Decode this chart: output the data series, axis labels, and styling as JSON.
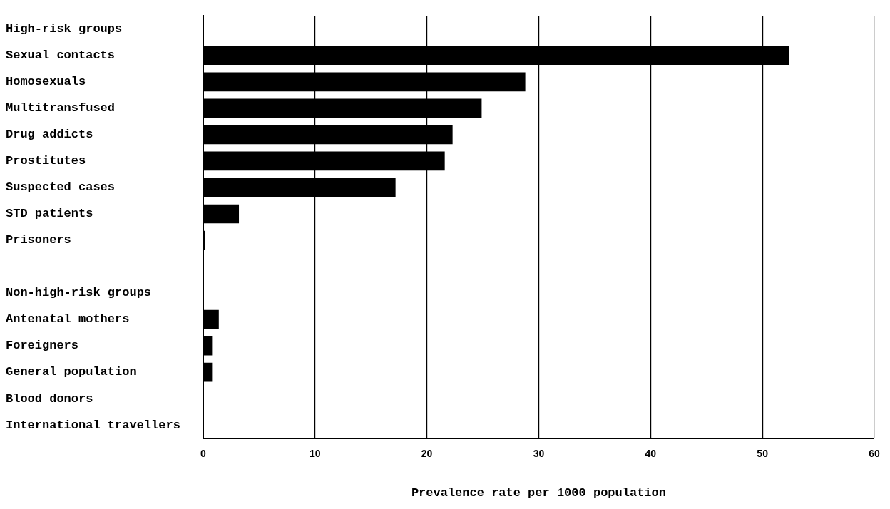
{
  "chart_data": {
    "type": "bar",
    "orientation": "horizontal",
    "xlabel": "Prevalence rate per 1000 population",
    "categories": [
      "High-risk groups",
      "Sexual contacts",
      "Homosexuals",
      "Multitransfused",
      "Drug addicts",
      "Prostitutes",
      "Suspected cases",
      "STD patients",
      "Prisoners",
      null,
      "Non-high-risk groups",
      "Antenatal mothers",
      "Foreigners",
      "General population",
      "Blood donors",
      "International travellers"
    ],
    "values": [
      null,
      52.4,
      28.8,
      24.9,
      22.3,
      21.6,
      17.2,
      3.2,
      0.2,
      null,
      null,
      1.4,
      0.8,
      0.8,
      0,
      0
    ],
    "color": "#000000",
    "xlim": [
      0,
      60
    ],
    "xticks": [
      0,
      10,
      20,
      30,
      40,
      50,
      60
    ],
    "grid": "x",
    "legend": false
  }
}
